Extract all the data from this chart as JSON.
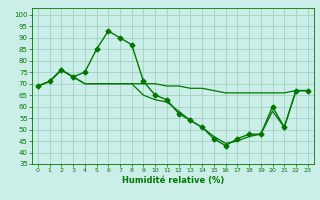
{
  "title": "",
  "xlabel": "Humidité relative (%)",
  "ylabel": "",
  "bg_color": "#cceee8",
  "grid_color": "#99ccbb",
  "line_color": "#007700",
  "xlim": [
    -0.5,
    23.5
  ],
  "ylim": [
    35,
    103
  ],
  "yticks": [
    35,
    40,
    45,
    50,
    55,
    60,
    65,
    70,
    75,
    80,
    85,
    90,
    95,
    100
  ],
  "xticks": [
    0,
    1,
    2,
    3,
    4,
    5,
    6,
    7,
    8,
    9,
    10,
    11,
    12,
    13,
    14,
    15,
    16,
    17,
    18,
    19,
    20,
    21,
    22,
    23
  ],
  "series": [
    {
      "x": [
        0,
        1,
        2,
        3,
        4,
        5,
        6,
        7,
        8,
        9,
        10,
        11,
        12,
        13,
        14,
        15,
        16,
        17,
        18,
        19,
        20,
        21,
        22,
        23
      ],
      "y": [
        69,
        71,
        76,
        73,
        75,
        85,
        93,
        90,
        87,
        71,
        65,
        63,
        57,
        54,
        51,
        46,
        43,
        46,
        48,
        48,
        60,
        51,
        67,
        67
      ],
      "marker": "D",
      "markersize": 2.5,
      "linewidth": 1.0
    },
    {
      "x": [
        0,
        1,
        2,
        3,
        4,
        5,
        6,
        7,
        8,
        9,
        10,
        11,
        12,
        13,
        14,
        15,
        16,
        17,
        18,
        19,
        20,
        21,
        22,
        23
      ],
      "y": [
        69,
        71,
        76,
        73,
        70,
        70,
        70,
        70,
        70,
        70,
        70,
        69,
        69,
        68,
        68,
        67,
        66,
        66,
        66,
        66,
        66,
        66,
        67,
        67
      ],
      "marker": null,
      "markersize": 0,
      "linewidth": 0.9
    },
    {
      "x": [
        0,
        1,
        2,
        3,
        4,
        5,
        6,
        7,
        8,
        9,
        10,
        11,
        12,
        13,
        14,
        15,
        16,
        17,
        18,
        19,
        20,
        21,
        22,
        23
      ],
      "y": [
        69,
        71,
        76,
        73,
        70,
        70,
        70,
        70,
        70,
        65,
        63,
        62,
        58,
        54,
        51,
        47,
        44,
        45,
        47,
        48,
        58,
        51,
        67,
        67
      ],
      "marker": null,
      "markersize": 0,
      "linewidth": 0.9
    }
  ]
}
